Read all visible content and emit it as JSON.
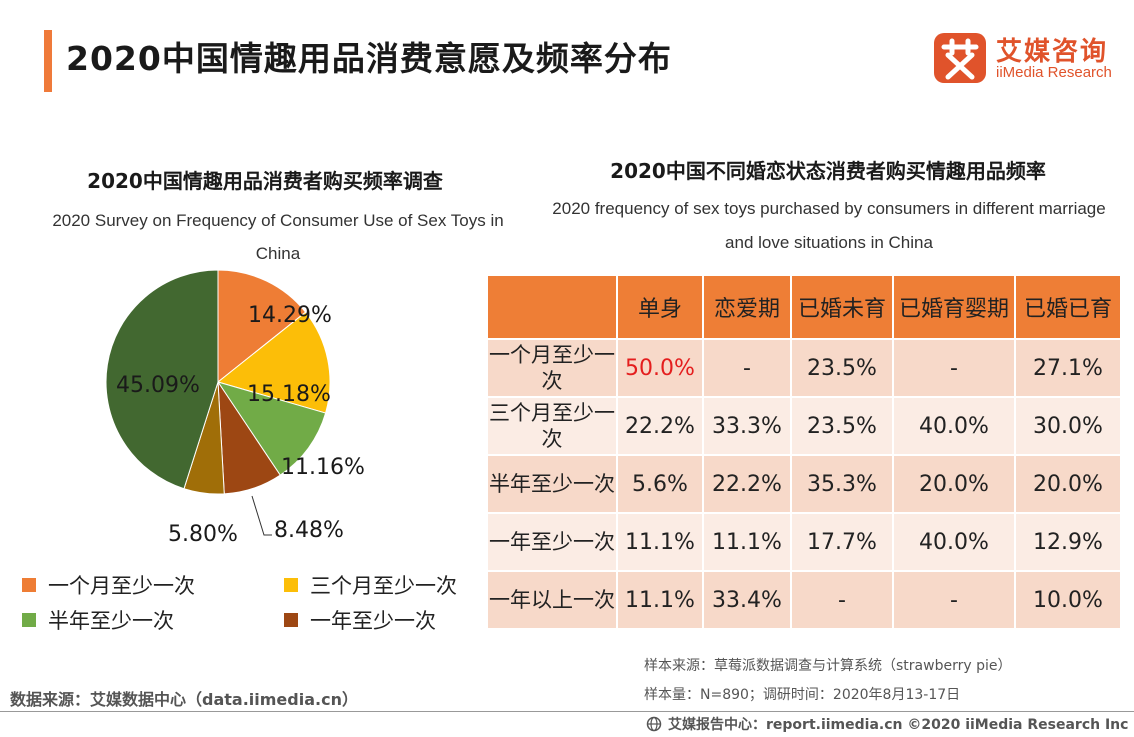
{
  "header": {
    "title": "2020中国情趣用品消费意愿及频率分布",
    "logo_cn": "艾媒咨询",
    "logo_en": "iiMedia Research",
    "logo_icon": "ai-logo-icon"
  },
  "left": {
    "title": "2020中国情趣用品消费者购买频率调查",
    "subtitle": "2020 Survey on Frequency of Consumer Use of Sex Toys in China"
  },
  "right": {
    "title": "2020中国不同婚恋状态消费者购买情趣用品频率",
    "subtitle": "2020 frequency of sex toys purchased by consumers in different marriage and love situations in China"
  },
  "chart_data": [
    {
      "type": "pie",
      "title": "2020中国情趣用品消费者购买频率调查",
      "slices": [
        {
          "label": "一个月至少一次",
          "value": 14.29,
          "value_label": "14.29%",
          "color": "#ee7d35",
          "in_legend": true
        },
        {
          "label": "三个月至少一次",
          "value": 15.18,
          "value_label": "15.18%",
          "color": "#fcbe08",
          "in_legend": true
        },
        {
          "label": "半年至少一次",
          "value": 11.16,
          "value_label": "11.16%",
          "color": "#71ab47",
          "in_legend": true
        },
        {
          "label": "一年至少一次",
          "value": 8.48,
          "value_label": "8.48%",
          "color": "#9d4713",
          "in_legend": true
        },
        {
          "label": "",
          "value": 5.8,
          "value_label": "5.80%",
          "color": "#a06e08",
          "in_legend": false
        },
        {
          "label": "",
          "value": 45.09,
          "value_label": "45.09%",
          "color": "#426830",
          "in_legend": false
        }
      ],
      "legend_position": "bottom"
    },
    {
      "type": "table",
      "title": "2020中国不同婚恋状态消费者购买情趣用品频率",
      "columns": [
        "",
        "单身",
        "恋爱期",
        "已婚未育",
        "已婚育婴期",
        "已婚已育"
      ],
      "rows": [
        {
          "label": "一个月至少一次",
          "cells": [
            "50.0%",
            "-",
            "23.5%",
            "-",
            "27.1%"
          ],
          "highlight": [
            0
          ]
        },
        {
          "label": "三个月至少一次",
          "cells": [
            "22.2%",
            "33.3%",
            "23.5%",
            "40.0%",
            "30.0%"
          ],
          "highlight": []
        },
        {
          "label": "半年至少一次",
          "cells": [
            "5.6%",
            "22.2%",
            "35.3%",
            "20.0%",
            "20.0%"
          ],
          "highlight": []
        },
        {
          "label": "一年至少一次",
          "cells": [
            "11.1%",
            "11.1%",
            "17.7%",
            "40.0%",
            "12.9%"
          ],
          "highlight": []
        },
        {
          "label": "一年以上一次",
          "cells": [
            "11.1%",
            "33.4%",
            "-",
            "-",
            "10.0%"
          ],
          "highlight": []
        }
      ],
      "colors": {
        "header": "#ee7e36",
        "highlight_text": "#e41e1e"
      }
    }
  ],
  "notes": {
    "sample_source": "样本来源：草莓派数据调查与计算系统（strawberry pie）",
    "sample_size": "样本量：N=890；调研时间：2020年8月13-17日"
  },
  "source": "数据来源：艾媒数据中心（data.iimedia.cn）",
  "footer": "艾媒报告中心：report.iimedia.cn  ©2020  iiMedia Research  Inc",
  "footer_icon": "globe-icon"
}
